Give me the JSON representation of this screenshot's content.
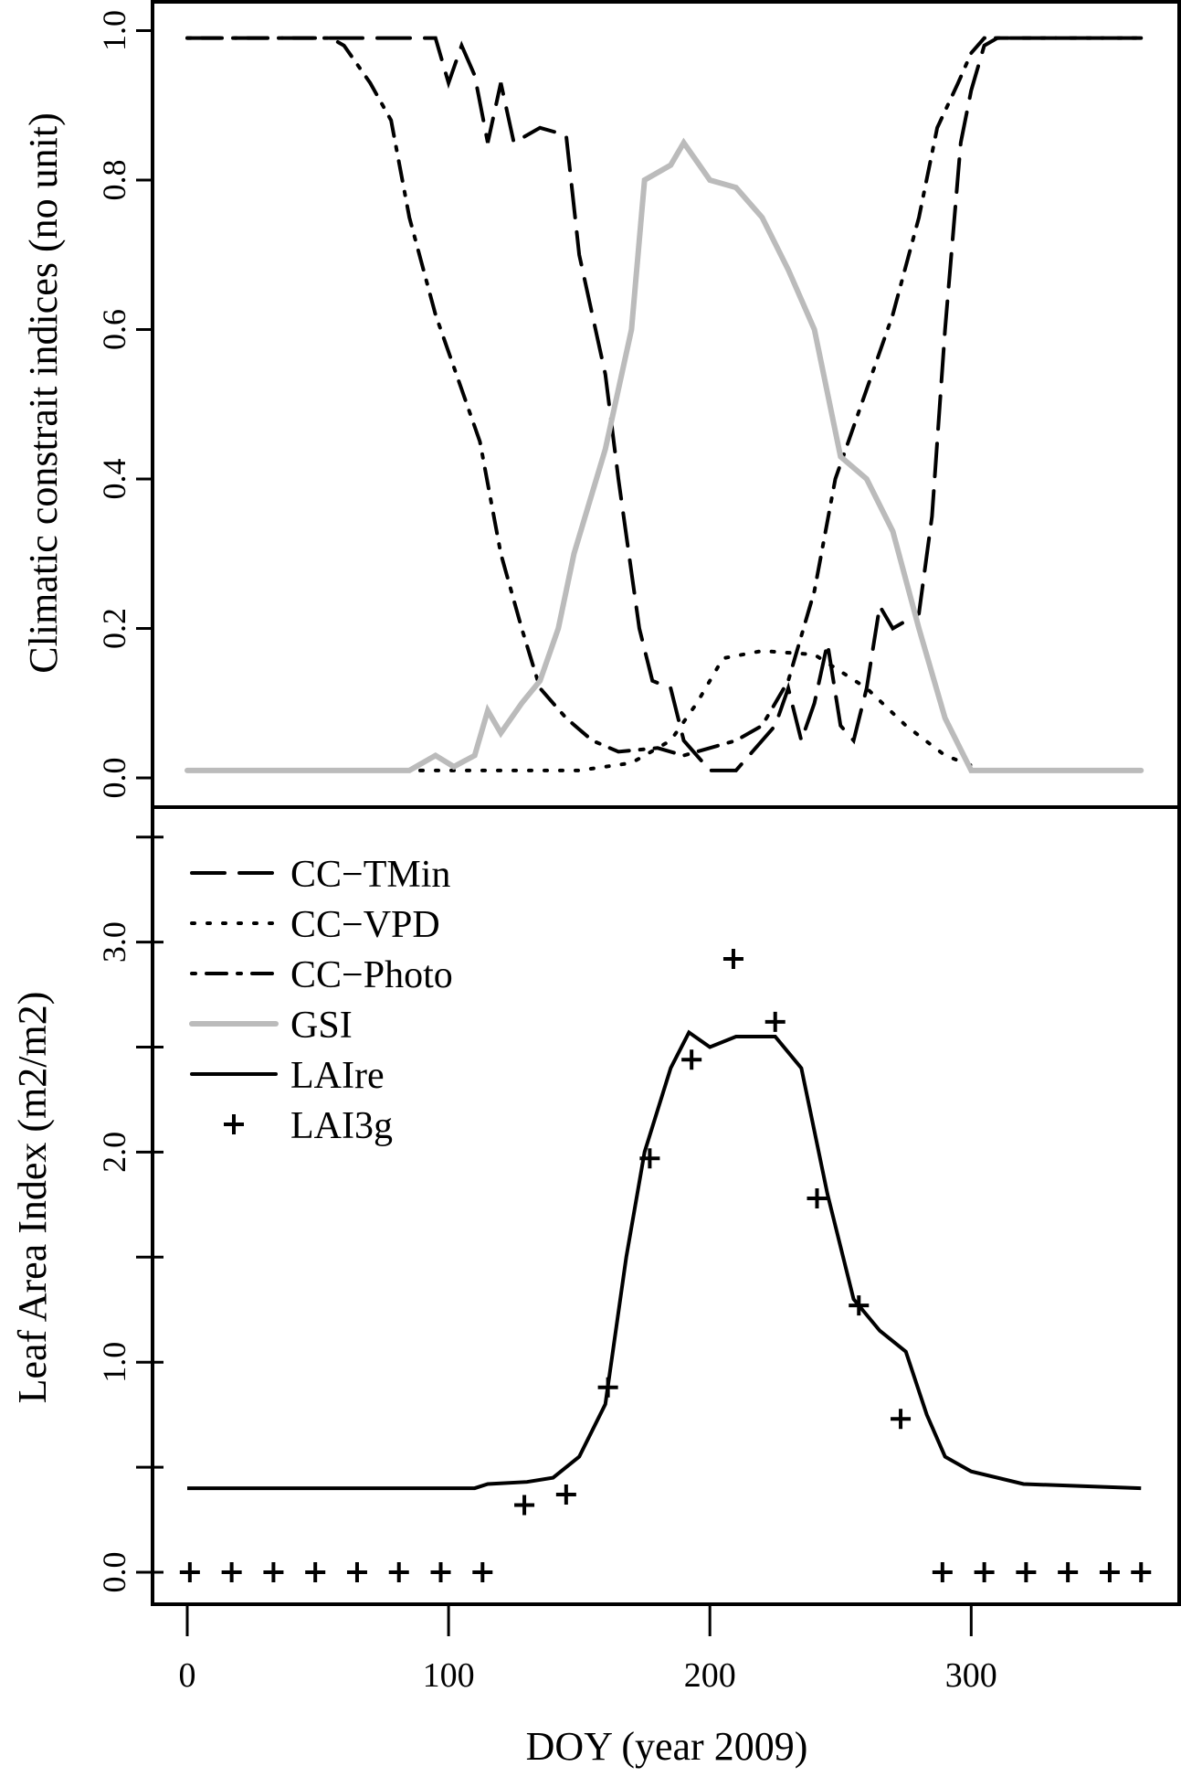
{
  "chart_data": [
    {
      "type": "line",
      "panel": "top",
      "ylabel": "Climatic constrait indices (no unit)",
      "xlim": [
        0,
        365
      ],
      "ylim": [
        0,
        1
      ],
      "yticks": [
        "0.0",
        "0.2",
        "0.4",
        "0.6",
        "0.8",
        "1.0"
      ],
      "series": [
        {
          "name": "CC-TMin",
          "style": "longdash",
          "color": "#000000",
          "x": [
            0,
            95,
            100,
            105,
            110,
            115,
            120,
            125,
            135,
            145,
            150,
            160,
            165,
            173,
            178,
            185,
            190,
            200,
            210,
            215,
            225,
            230,
            235,
            240,
            245,
            250,
            255,
            260,
            265,
            270,
            280,
            285,
            290,
            296,
            300,
            305,
            310,
            365
          ],
          "y": [
            0.99,
            0.99,
            0.93,
            0.98,
            0.94,
            0.85,
            0.93,
            0.85,
            0.87,
            0.86,
            0.7,
            0.54,
            0.4,
            0.2,
            0.13,
            0.12,
            0.05,
            0.01,
            0.01,
            0.03,
            0.07,
            0.12,
            0.05,
            0.1,
            0.18,
            0.07,
            0.05,
            0.12,
            0.23,
            0.2,
            0.22,
            0.35,
            0.6,
            0.85,
            0.92,
            0.98,
            0.99,
            0.99
          ]
        },
        {
          "name": "CC-VPD",
          "style": "dotted",
          "color": "#000000",
          "x": [
            0,
            150,
            170,
            185,
            195,
            205,
            220,
            240,
            260,
            275,
            290,
            305,
            365
          ],
          "y": [
            0.01,
            0.01,
            0.02,
            0.05,
            0.1,
            0.16,
            0.17,
            0.165,
            0.12,
            0.07,
            0.03,
            0.01,
            0.01
          ]
        },
        {
          "name": "CC-Photo",
          "style": "dotdash",
          "color": "#000000",
          "x": [
            0,
            55,
            60,
            70,
            78,
            85,
            95,
            105,
            112,
            120,
            128,
            135,
            145,
            155,
            165,
            180,
            190,
            200,
            210,
            220,
            230,
            240,
            248,
            260,
            270,
            280,
            287,
            295,
            300,
            305,
            310,
            365
          ],
          "y": [
            0.99,
            0.99,
            0.98,
            0.93,
            0.88,
            0.75,
            0.62,
            0.52,
            0.45,
            0.3,
            0.2,
            0.12,
            0.08,
            0.05,
            0.035,
            0.04,
            0.03,
            0.04,
            0.05,
            0.07,
            0.13,
            0.25,
            0.4,
            0.52,
            0.62,
            0.75,
            0.87,
            0.93,
            0.97,
            0.99,
            0.99,
            0.99
          ]
        },
        {
          "name": "GSI",
          "style": "solid",
          "color": "#bbbbbb",
          "x": [
            0,
            85,
            95,
            102,
            110,
            115,
            120,
            128,
            135,
            142,
            148,
            160,
            170,
            175,
            185,
            190,
            200,
            210,
            220,
            230,
            240,
            250,
            260,
            270,
            280,
            290,
            300,
            365
          ],
          "y": [
            0.01,
            0.01,
            0.03,
            0.015,
            0.03,
            0.09,
            0.06,
            0.1,
            0.13,
            0.2,
            0.3,
            0.44,
            0.6,
            0.8,
            0.82,
            0.85,
            0.8,
            0.79,
            0.75,
            0.68,
            0.6,
            0.43,
            0.4,
            0.33,
            0.2,
            0.08,
            0.01,
            0.01
          ]
        }
      ]
    },
    {
      "type": "line",
      "panel": "bottom",
      "ylabel": "Leaf Area Index (m2/m2)",
      "xlabel": "DOY (year 2009)",
      "xlim": [
        0,
        365
      ],
      "ylim": [
        0,
        3.5
      ],
      "xticks": [
        "0",
        "100",
        "200",
        "300"
      ],
      "yticks": [
        "0.0",
        "1.0",
        "2.0",
        "3.0"
      ],
      "minor_yticks": [
        0.5,
        1.5,
        2.5,
        3.5
      ],
      "legend_position": "top-left",
      "series": [
        {
          "name": "LAIre",
          "style": "solid",
          "color": "#000000",
          "x": [
            0,
            110,
            115,
            130,
            140,
            150,
            160,
            168,
            175,
            185,
            192,
            200,
            210,
            225,
            235,
            245,
            255,
            265,
            275,
            283,
            290,
            300,
            320,
            365
          ],
          "y": [
            0.4,
            0.4,
            0.42,
            0.43,
            0.45,
            0.55,
            0.8,
            1.5,
            2.0,
            2.4,
            2.57,
            2.5,
            2.55,
            2.55,
            2.4,
            1.8,
            1.3,
            1.15,
            1.05,
            0.75,
            0.55,
            0.48,
            0.42,
            0.4
          ]
        },
        {
          "name": "LAI3g",
          "style": "plus",
          "color": "#000000",
          "x": [
            1,
            17,
            33,
            49,
            65,
            81,
            97,
            113,
            129,
            145,
            161,
            177,
            193,
            209,
            225,
            241,
            257,
            273,
            289,
            305,
            321,
            337,
            353,
            365
          ],
          "y": [
            0,
            0,
            0,
            0,
            0,
            0,
            0,
            0,
            0.32,
            0.37,
            0.88,
            1.97,
            2.44,
            2.92,
            2.62,
            1.78,
            1.27,
            0.73,
            0,
            0,
            0,
            0,
            0,
            0
          ]
        }
      ],
      "legend": [
        "CC−TMin",
        "CC−VPD",
        "CC−Photo",
        "GSI",
        "LAIre",
        "LAI3g"
      ]
    }
  ]
}
